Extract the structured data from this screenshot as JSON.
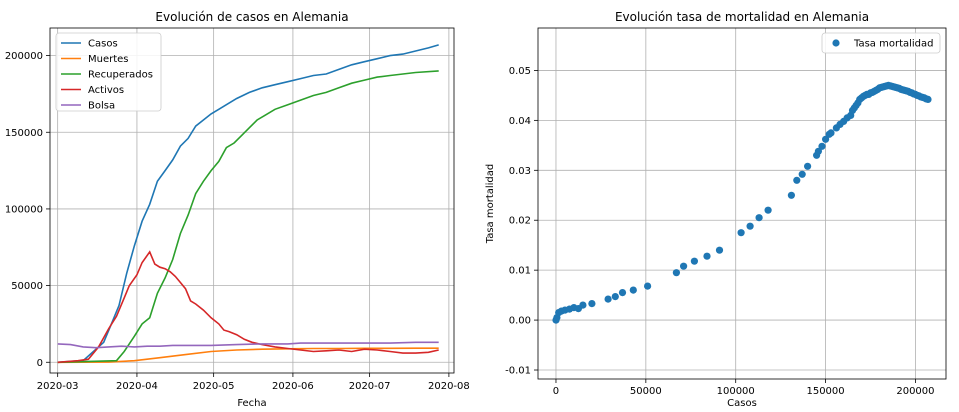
{
  "chart_data": [
    {
      "type": "line",
      "title": "Evolución de casos en Alemania",
      "xlabel": "Fecha",
      "ylabel": "",
      "x_ticks": [
        "2020-03",
        "2020-04",
        "2020-05",
        "2020-06",
        "2020-07",
        "2020-08"
      ],
      "y_ticks": [
        "0",
        "50000",
        "100000",
        "150000",
        "200000"
      ],
      "ylim": [
        -7000,
        218000
      ],
      "xlim_days": [
        -3,
        155
      ],
      "grid": true,
      "legend": "top-left",
      "x_unit": "days since 2020-03-01",
      "series": [
        {
          "name": "Casos",
          "color": "#1f77b4",
          "x": [
            0,
            10,
            18,
            21,
            24,
            27,
            30,
            33,
            36,
            39,
            42,
            45,
            48,
            51,
            54,
            57,
            60,
            63,
            66,
            70,
            75,
            80,
            85,
            90,
            95,
            100,
            105,
            110,
            115,
            120,
            125,
            130,
            135,
            140,
            145,
            149
          ],
          "y": [
            0,
            1100,
            13000,
            25000,
            37000,
            58000,
            76000,
            92000,
            103000,
            118000,
            125000,
            132000,
            141000,
            146000,
            154000,
            158000,
            162000,
            165000,
            168000,
            172000,
            176000,
            179000,
            181000,
            183000,
            185000,
            187000,
            188000,
            191000,
            194000,
            196000,
            198000,
            200000,
            201000,
            203000,
            205000,
            207000
          ]
        },
        {
          "name": "Muertes",
          "color": "#ff7f0e",
          "x": [
            0,
            20,
            30,
            40,
            50,
            60,
            70,
            80,
            90,
            100,
            110,
            120,
            130,
            140,
            149
          ],
          "y": [
            0,
            100,
            1000,
            3000,
            5000,
            7000,
            8000,
            8500,
            8800,
            9000,
            9000,
            9100,
            9100,
            9200,
            9200
          ]
        },
        {
          "name": "Recuperados",
          "color": "#2ca02c",
          "x": [
            0,
            23,
            26,
            30,
            33,
            36,
            39,
            42,
            45,
            48,
            51,
            54,
            57,
            60,
            63,
            66,
            69,
            72,
            75,
            78,
            81,
            85,
            90,
            95,
            100,
            105,
            110,
            115,
            120,
            125,
            130,
            135,
            140,
            149
          ],
          "y": [
            0,
            1000,
            7000,
            17000,
            25000,
            29000,
            45000,
            55000,
            67000,
            84000,
            96000,
            110000,
            118000,
            125000,
            131000,
            140000,
            143000,
            148000,
            153000,
            158000,
            161000,
            165000,
            168000,
            171000,
            174000,
            176000,
            179000,
            182000,
            184000,
            186000,
            187000,
            188000,
            189000,
            190000
          ]
        },
        {
          "name": "Activos",
          "color": "#d62728",
          "x": [
            0,
            8,
            12,
            16,
            20,
            23,
            26,
            28,
            31,
            33,
            36,
            38,
            40,
            42,
            44,
            46,
            48,
            50,
            52,
            54,
            57,
            60,
            63,
            65,
            67,
            70,
            73,
            76,
            80,
            85,
            90,
            95,
            100,
            105,
            110,
            115,
            120,
            125,
            130,
            135,
            140,
            145,
            149
          ],
          "y": [
            0,
            1000,
            2000,
            10000,
            22000,
            30000,
            42000,
            50000,
            57000,
            65000,
            72000,
            64000,
            62000,
            61000,
            59000,
            56000,
            52000,
            48000,
            40000,
            38000,
            34000,
            29000,
            25000,
            21000,
            20000,
            18000,
            15000,
            13000,
            11500,
            10000,
            9000,
            8000,
            7000,
            7500,
            8000,
            7000,
            8500,
            8000,
            7000,
            6000,
            6000,
            6500,
            8000
          ]
        },
        {
          "name": "Bolsa",
          "color": "#9467bd",
          "x": [
            0,
            5,
            10,
            15,
            20,
            25,
            30,
            35,
            40,
            45,
            50,
            55,
            60,
            70,
            80,
            90,
            95,
            100,
            110,
            120,
            130,
            140,
            149
          ],
          "y": [
            12000,
            11500,
            10000,
            9500,
            10000,
            10500,
            10000,
            10500,
            10500,
            11000,
            11000,
            11000,
            11000,
            11500,
            12000,
            12000,
            12500,
            12500,
            12500,
            12500,
            12500,
            13000,
            13000
          ]
        }
      ]
    },
    {
      "type": "scatter",
      "title": "Evolución tasa de mortalidad en Alemania",
      "xlabel": "Casos",
      "ylabel": "Tasa mortalidad",
      "x_ticks": [
        "0",
        "50000",
        "100000",
        "150000",
        "200000"
      ],
      "y_ticks": [
        "-0.01",
        "0.00",
        "0.01",
        "0.02",
        "0.03",
        "0.04",
        "0.05"
      ],
      "xlim": [
        -10000,
        217000
      ],
      "ylim": [
        -0.0118,
        0.0585
      ],
      "grid": true,
      "legend": "top-right",
      "series": [
        {
          "name": "Tasa mortalidad",
          "color": "#1f77b4",
          "x": [
            0,
            500,
            1500,
            3000,
            5000,
            7500,
            10000,
            12500,
            15000,
            20000,
            29000,
            33000,
            37000,
            43000,
            51000,
            67000,
            71000,
            77000,
            84000,
            91000,
            103000,
            108000,
            113000,
            118000,
            131000,
            134000,
            137000,
            140000,
            145000,
            146000,
            148000,
            150000,
            152000,
            153000,
            156000,
            158000,
            160000,
            162000,
            164000,
            165000,
            166000,
            167000,
            168000,
            169000,
            170000,
            171000,
            172000,
            173000,
            174000,
            175000,
            176000,
            177000,
            178000,
            179000,
            180000,
            181000,
            182000,
            183000,
            184000,
            185000,
            186000,
            187000,
            188000,
            189000,
            190000,
            191000,
            192000,
            193000,
            194000,
            195000,
            196000,
            197000,
            198000,
            199000,
            200000,
            201000,
            202000,
            203000,
            204000,
            205000,
            206000,
            207000
          ],
          "y": [
            0.0,
            0.0005,
            0.0015,
            0.0018,
            0.002,
            0.0022,
            0.0025,
            0.0023,
            0.003,
            0.0033,
            0.0042,
            0.0047,
            0.0055,
            0.006,
            0.0068,
            0.0095,
            0.0108,
            0.0118,
            0.0128,
            0.014,
            0.0175,
            0.0188,
            0.0205,
            0.022,
            0.025,
            0.028,
            0.0292,
            0.0308,
            0.033,
            0.0338,
            0.0348,
            0.0362,
            0.0372,
            0.0375,
            0.0385,
            0.0392,
            0.0398,
            0.0405,
            0.041,
            0.042,
            0.0425,
            0.043,
            0.0435,
            0.0442,
            0.0445,
            0.0448,
            0.045,
            0.0452,
            0.0452,
            0.0455,
            0.0456,
            0.0458,
            0.046,
            0.0462,
            0.0465,
            0.0466,
            0.0467,
            0.0468,
            0.0469,
            0.047,
            0.0469,
            0.0468,
            0.0467,
            0.0466,
            0.0465,
            0.0464,
            0.0462,
            0.0461,
            0.046,
            0.0459,
            0.0458,
            0.0456,
            0.0455,
            0.0453,
            0.0452,
            0.045,
            0.0449,
            0.0447,
            0.0446,
            0.0445,
            0.0443,
            0.0442
          ]
        }
      ]
    }
  ]
}
